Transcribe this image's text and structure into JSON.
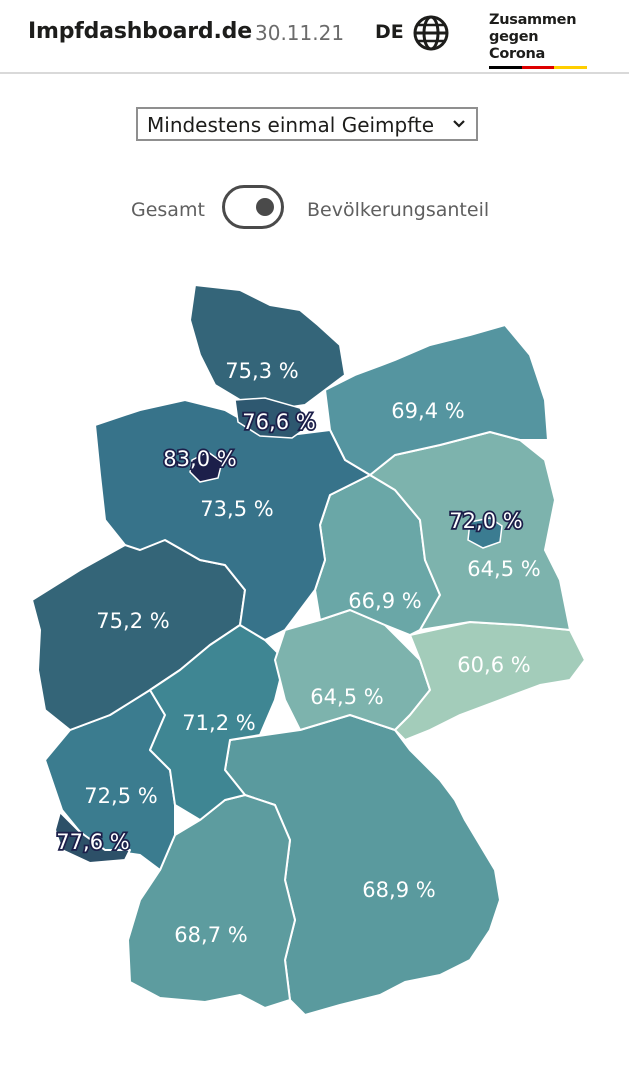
{
  "header": {
    "site_title": "Impfdashboard.de",
    "date": "30.11.21",
    "language": "DE",
    "globe_icon": "globe-icon",
    "brand_line1": "Zusammen",
    "brand_line2": "gegen Corona",
    "flag_colors": [
      "#000000",
      "#dd0000",
      "#ffce00"
    ]
  },
  "selector": {
    "selected_value": "Mindestens einmal Geimpfte",
    "chevron_icon": "chevron-down-icon"
  },
  "toggle": {
    "left_label": "Gesamt",
    "right_label": "Bevölkerungsanteil",
    "selected": "Bevölkerungsanteil"
  },
  "map": {
    "regions": [
      {
        "name": "Schleswig-Holstein",
        "value": "75,3 %",
        "color": "#346579"
      },
      {
        "name": "Hamburg",
        "value": "76,6 %",
        "color": "#2e5870"
      },
      {
        "name": "Mecklenburg-Vorpommern",
        "value": "69,4 %",
        "color": "#5595a0"
      },
      {
        "name": "Bremen",
        "value": "83,0 %",
        "color": "#1c1f4a"
      },
      {
        "name": "Niedersachsen",
        "value": "73,5 %",
        "color": "#37738a"
      },
      {
        "name": "Berlin",
        "value": "72,0 %",
        "color": "#3b7c91"
      },
      {
        "name": "Brandenburg",
        "value": "64,5 %",
        "color": "#7db3ad"
      },
      {
        "name": "Sachsen-Anhalt",
        "value": "66,9 %",
        "color": "#6aa7a7"
      },
      {
        "name": "Nordrhein-Westfalen",
        "value": "75,2 %",
        "color": "#346578"
      },
      {
        "name": "Sachsen",
        "value": "60,6 %",
        "color": "#a3ccba"
      },
      {
        "name": "Thüringen",
        "value": "64,5 %",
        "color": "#7db3ad"
      },
      {
        "name": "Hessen",
        "value": "71,2 %",
        "color": "#3f8693"
      },
      {
        "name": "Rheinland-Pfalz",
        "value": "72,5 %",
        "color": "#3b7c8f"
      },
      {
        "name": "Saarland",
        "value": "77,6 %",
        "color": "#2d5068"
      },
      {
        "name": "Bayern",
        "value": "68,9 %",
        "color": "#5a9a9e"
      },
      {
        "name": "Baden-Württemberg",
        "value": "68,7 %",
        "color": "#5d9c9f"
      }
    ]
  }
}
